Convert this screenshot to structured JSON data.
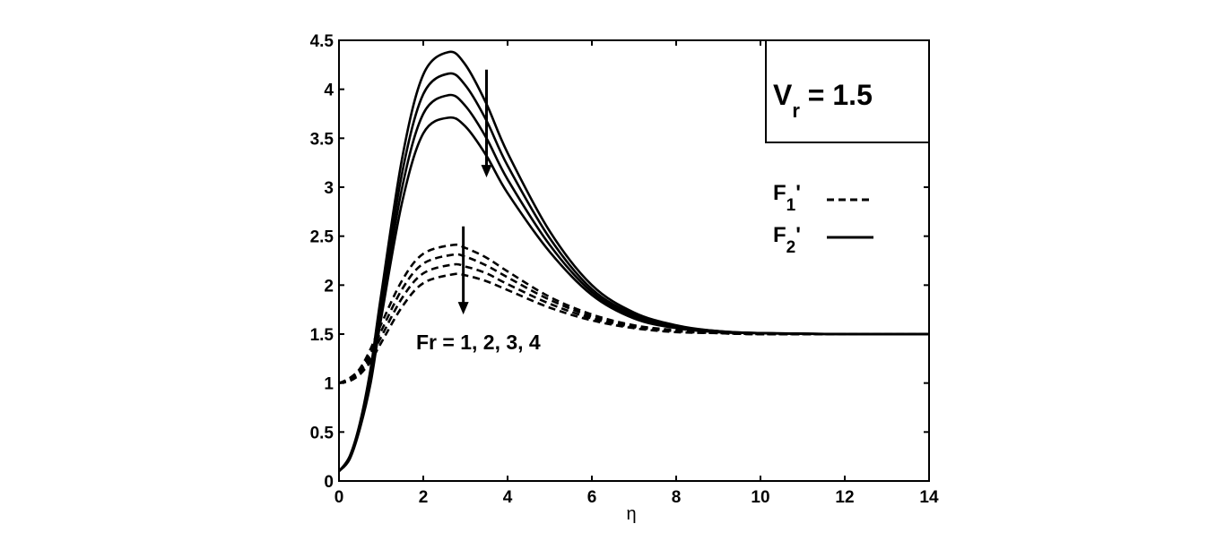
{
  "chart_data": {
    "type": "line",
    "xlabel": "η",
    "ylabel": "",
    "xlim": [
      0,
      14
    ],
    "ylim": [
      0,
      4.5
    ],
    "x_ticks": [
      "0",
      "2",
      "4",
      "6",
      "8",
      "10",
      "12",
      "14"
    ],
    "y_ticks": [
      "0",
      "0.5",
      "1",
      "1.5",
      "2",
      "2.5",
      "3",
      "3.5",
      "4",
      "4.5"
    ],
    "grid": false,
    "inset_label": {
      "main": "V",
      "sub": "r",
      "rest": " = 1.5"
    },
    "legend": {
      "placement": "right",
      "entries": [
        {
          "main": "F",
          "sub": "1",
          "prime": "'",
          "style": "dashed"
        },
        {
          "main": "F",
          "sub": "2",
          "prime": "'",
          "style": "solid"
        }
      ]
    },
    "annotation": "Fr = 1, 2, 3, 4",
    "series": [
      {
        "group": "F2'",
        "style": "solid",
        "x": [
          0,
          0.25,
          0.5,
          0.75,
          1,
          1.5,
          2,
          2.6,
          3,
          3.5,
          4,
          5,
          6,
          7,
          8,
          9,
          10,
          12,
          14
        ],
        "y": [
          0.1,
          0.25,
          0.6,
          1.15,
          1.9,
          3.3,
          4.15,
          4.38,
          4.25,
          3.85,
          3.35,
          2.55,
          2.0,
          1.72,
          1.59,
          1.53,
          1.51,
          1.5,
          1.5
        ]
      },
      {
        "group": "F2'",
        "style": "solid",
        "x": [
          0,
          0.25,
          0.5,
          0.75,
          1,
          1.5,
          2,
          2.6,
          3,
          3.5,
          4,
          5,
          6,
          7,
          8,
          9,
          10,
          12,
          14
        ],
        "y": [
          0.1,
          0.24,
          0.58,
          1.1,
          1.82,
          3.15,
          3.95,
          4.16,
          4.04,
          3.68,
          3.22,
          2.48,
          1.96,
          1.7,
          1.58,
          1.53,
          1.51,
          1.5,
          1.5
        ]
      },
      {
        "group": "F2'",
        "style": "solid",
        "x": [
          0,
          0.25,
          0.5,
          0.75,
          1,
          1.5,
          2,
          2.6,
          3,
          3.5,
          4,
          5,
          6,
          7,
          8,
          9,
          10,
          12,
          14
        ],
        "y": [
          0.1,
          0.23,
          0.56,
          1.05,
          1.74,
          3.0,
          3.75,
          3.94,
          3.83,
          3.5,
          3.08,
          2.41,
          1.93,
          1.68,
          1.57,
          1.52,
          1.51,
          1.5,
          1.5
        ]
      },
      {
        "group": "F2'",
        "style": "solid",
        "x": [
          0,
          0.25,
          0.5,
          0.75,
          1,
          1.5,
          2,
          2.6,
          3,
          3.5,
          4,
          5,
          6,
          7,
          8,
          9,
          10,
          12,
          14
        ],
        "y": [
          0.1,
          0.22,
          0.54,
          1.0,
          1.66,
          2.85,
          3.55,
          3.71,
          3.62,
          3.32,
          2.94,
          2.34,
          1.9,
          1.66,
          1.56,
          1.52,
          1.51,
          1.5,
          1.5
        ]
      },
      {
        "group": "F1'",
        "style": "dashed",
        "x": [
          0,
          0.25,
          0.5,
          0.75,
          1,
          1.5,
          2,
          2.7,
          3,
          3.5,
          4,
          5,
          6,
          7,
          8,
          9,
          10,
          12,
          14
        ],
        "y": [
          1.0,
          1.05,
          1.15,
          1.35,
          1.6,
          2.05,
          2.32,
          2.41,
          2.38,
          2.28,
          2.14,
          1.88,
          1.7,
          1.59,
          1.54,
          1.51,
          1.5,
          1.5,
          1.5
        ]
      },
      {
        "group": "F1'",
        "style": "dashed",
        "x": [
          0,
          0.25,
          0.5,
          0.75,
          1,
          1.5,
          2,
          2.7,
          3,
          3.5,
          4,
          5,
          6,
          7,
          8,
          9,
          10,
          12,
          14
        ],
        "y": [
          1.0,
          1.04,
          1.13,
          1.3,
          1.53,
          1.96,
          2.22,
          2.31,
          2.29,
          2.2,
          2.08,
          1.85,
          1.68,
          1.58,
          1.53,
          1.51,
          1.5,
          1.5,
          1.5
        ]
      },
      {
        "group": "F1'",
        "style": "dashed",
        "x": [
          0,
          0.25,
          0.5,
          0.75,
          1,
          1.5,
          2,
          2.7,
          3,
          3.5,
          4,
          5,
          6,
          7,
          8,
          9,
          10,
          12,
          14
        ],
        "y": [
          1.0,
          1.03,
          1.11,
          1.26,
          1.47,
          1.87,
          2.12,
          2.21,
          2.19,
          2.12,
          2.01,
          1.81,
          1.66,
          1.57,
          1.53,
          1.51,
          1.5,
          1.5,
          1.5
        ]
      },
      {
        "group": "F1'",
        "style": "dashed",
        "x": [
          0,
          0.25,
          0.5,
          0.75,
          1,
          1.5,
          2,
          2.7,
          3,
          3.5,
          4,
          5,
          6,
          7,
          8,
          9,
          10,
          12,
          14
        ],
        "y": [
          1.0,
          1.02,
          1.09,
          1.22,
          1.41,
          1.78,
          2.02,
          2.11,
          2.1,
          2.04,
          1.95,
          1.77,
          1.64,
          1.56,
          1.52,
          1.51,
          1.5,
          1.5,
          1.5
        ]
      }
    ],
    "arrows": [
      {
        "x_from": 3.5,
        "y_from": 4.2,
        "x_to": 3.5,
        "y_to": 3.1
      },
      {
        "x_from": 2.95,
        "y_from": 2.6,
        "x_to": 2.95,
        "y_to": 1.7
      }
    ]
  }
}
